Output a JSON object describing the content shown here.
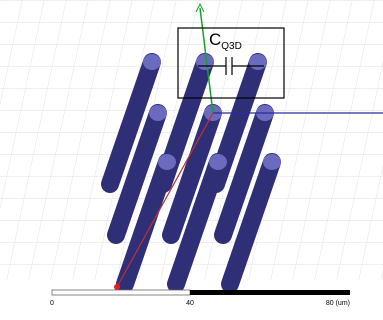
{
  "label": {
    "main": "C",
    "sub": "Q3D"
  },
  "scale_bar": {
    "labels": [
      "0",
      "40",
      "80 (um)"
    ]
  }
}
